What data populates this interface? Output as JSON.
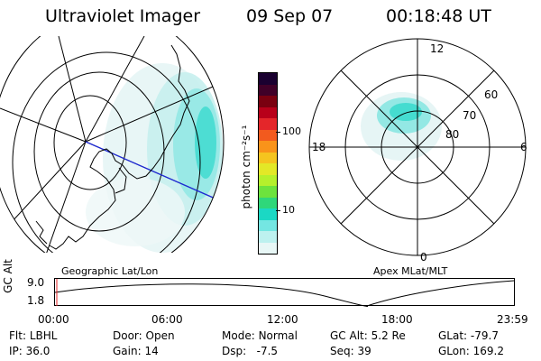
{
  "header": {
    "instrument": "Ultraviolet Imager",
    "date": "09 Sep 07",
    "time": "00:18:48 UT"
  },
  "colorbar": {
    "label": "photon cm⁻²s⁻¹",
    "ticks": [
      "100",
      "10"
    ],
    "colors": [
      "#1a0030",
      "#400028",
      "#7a0010",
      "#b8001a",
      "#e4262a",
      "#f25a1e",
      "#f9931a",
      "#f5c41f",
      "#e3e827",
      "#b5f02c",
      "#6de33d",
      "#2fd77a",
      "#1bd8c4",
      "#74e6e2",
      "#bdf1ef",
      "#e8f7f6"
    ]
  },
  "left_map": {
    "caption": "Geographic Lat/Lon"
  },
  "right_map": {
    "caption": "Apex MLat/MLT",
    "mlt_labels": {
      "top": "12",
      "bottom": "0",
      "left": "18",
      "right": "6"
    },
    "mlat_labels": [
      "60",
      "70",
      "80"
    ]
  },
  "altitude_plot": {
    "ylabel": "GC Alt",
    "yticks": [
      "9.0",
      "1.8"
    ],
    "xticks": [
      "00:00",
      "06:00",
      "12:00",
      "18:00",
      "23:59"
    ]
  },
  "info": [
    {
      "label": "Flt:",
      "value": "LBHL"
    },
    {
      "label": "IP:",
      "value": "36.0"
    },
    {
      "label": "Door:",
      "value": "Open"
    },
    {
      "label": "Gain:",
      "value": "14"
    },
    {
      "label": "Mode:",
      "value": "Normal"
    },
    {
      "label": "Dsp:",
      "value": "-7.5"
    },
    {
      "label": "GC Alt:",
      "value": "5.2 Re"
    },
    {
      "label": "Seq:",
      "value": "39"
    },
    {
      "label": "GLat:",
      "value": "-79.7"
    },
    {
      "label": "GLon:",
      "value": "169.2"
    }
  ]
}
